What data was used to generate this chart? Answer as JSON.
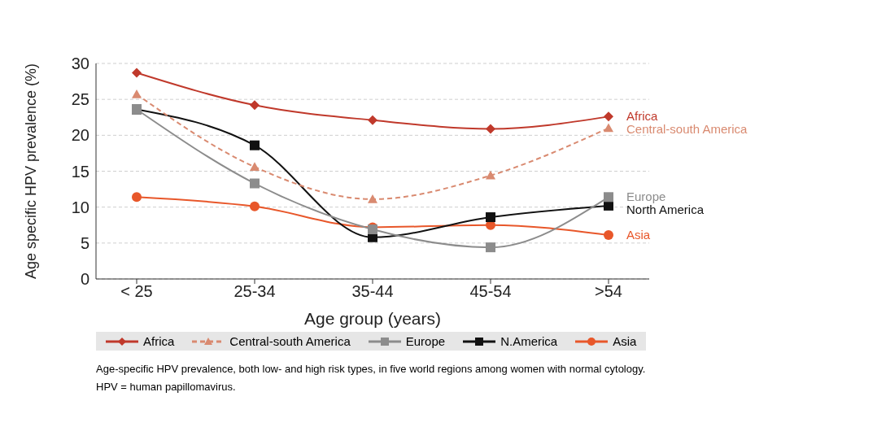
{
  "chart_data": {
    "type": "line",
    "xlabel": "Age group (years)",
    "ylabel": "Age specific HPV prevalence (%)",
    "categories": [
      "< 25",
      "25-34",
      "35-44",
      "45-54",
      ">54"
    ],
    "series": [
      {
        "name": "Africa",
        "color": "#c0392b",
        "marker": "diamond",
        "line_style": "solid",
        "values": [
          28.7,
          24.2,
          22.1,
          20.9,
          22.6
        ]
      },
      {
        "name": "Central-south America",
        "color": "#d98a70",
        "marker": "triangle",
        "line_style": "dashed",
        "values": [
          25.7,
          15.6,
          11.1,
          14.4,
          21.0
        ]
      },
      {
        "name": "Europe",
        "color": "#8c8c8c",
        "marker": "square",
        "line_style": "solid",
        "values": [
          23.6,
          13.3,
          6.9,
          4.4,
          11.4
        ]
      },
      {
        "name": "N.America",
        "color": "#111111",
        "marker": "square",
        "line_style": "solid",
        "values": [
          23.6,
          18.6,
          5.8,
          8.6,
          10.2
        ]
      },
      {
        "name": "Asia",
        "color": "#e8572a",
        "marker": "circle",
        "line_style": "solid",
        "values": [
          11.4,
          10.1,
          7.2,
          7.5,
          6.1
        ]
      }
    ],
    "ylim": [
      0,
      30
    ],
    "yticks": [
      0,
      5,
      10,
      15,
      20,
      25,
      30
    ],
    "grid": "y",
    "legend": "bottom",
    "annotations": [
      {
        "text": "Africa",
        "x": ">54",
        "y": 22.6
      },
      {
        "text": "Central-south America",
        "x": ">54",
        "y": 21.0
      },
      {
        "text": "Europe",
        "x": ">54",
        "y": 11.4
      },
      {
        "text": "North America",
        "x": ">54",
        "y": 10.2
      },
      {
        "text": "Asia",
        "x": ">54",
        "y": 6.1
      },
      "Age-specific HPV prevalence, both low- and high risk types, in five world regions among women with normal cytology.",
      "HPV = human papillomavirus."
    ]
  }
}
